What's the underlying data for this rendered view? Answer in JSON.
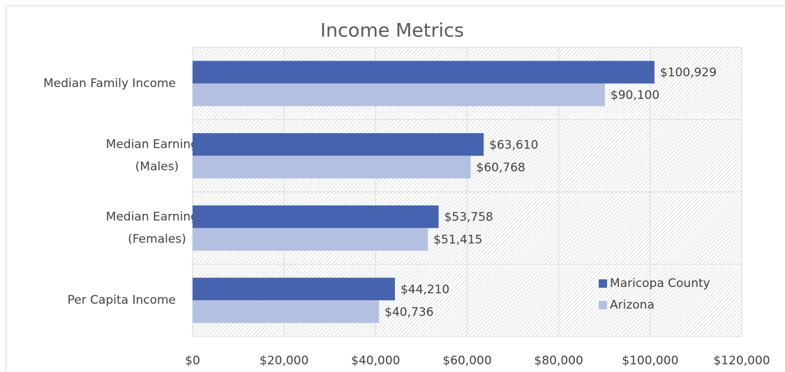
{
  "chart_data": {
    "type": "barh",
    "title": "Income Metrics",
    "categories": [
      "Median Family Income",
      "Median Earnings (Males)",
      "Median Earnings (Females)",
      "Per Capita Income"
    ],
    "series": [
      {
        "name": "Maricopa County",
        "color": "#4563ae",
        "values": [
          100929,
          63610,
          53758,
          44210
        ],
        "value_labels": [
          "$100,929",
          "$63,610",
          "$53,758",
          "$44,210"
        ]
      },
      {
        "name": "Arizona",
        "color": "#b4c0e2",
        "values": [
          90100,
          60768,
          51415,
          40736
        ],
        "value_labels": [
          "$90,100",
          "$60,768",
          "$51,415",
          "$40,736"
        ]
      }
    ],
    "xlim": [
      0,
      120000
    ],
    "xticks": [
      {
        "value": 0,
        "label": "$0"
      },
      {
        "value": 20000,
        "label": "$20,000"
      },
      {
        "value": 40000,
        "label": "$40,000"
      },
      {
        "value": 60000,
        "label": "$60,000"
      },
      {
        "value": 80000,
        "label": "$80,000"
      },
      {
        "value": 100000,
        "label": "$100,000"
      },
      {
        "value": 120000,
        "label": "$120,000"
      }
    ],
    "grid": true,
    "legend": "lower right"
  }
}
